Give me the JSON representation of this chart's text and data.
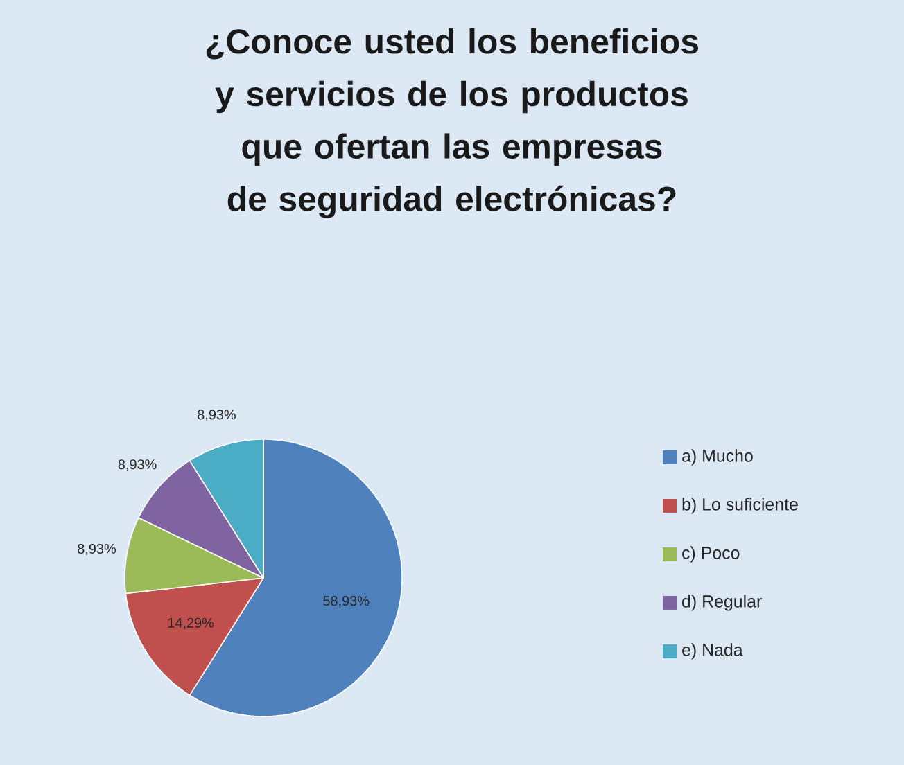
{
  "chart_data": {
    "type": "pie",
    "title": "¿Conoce usted los beneficios y servicios de los productos que ofertan las empresas de seguridad electrónicas?",
    "categories": [
      "a) Mucho",
      "b) Lo suficiente",
      "c) Poco",
      "d) Regular",
      "e) Nada"
    ],
    "values": [
      58.93,
      14.29,
      8.93,
      8.93,
      8.93
    ],
    "value_labels": [
      "58,93%",
      "14,29%",
      "8,93%",
      "8,93%",
      "8,93%"
    ],
    "colors": [
      "#4f81bd",
      "#c0504d",
      "#9bbb59",
      "#8064a2",
      "#4bacc6"
    ],
    "legend": "right"
  }
}
